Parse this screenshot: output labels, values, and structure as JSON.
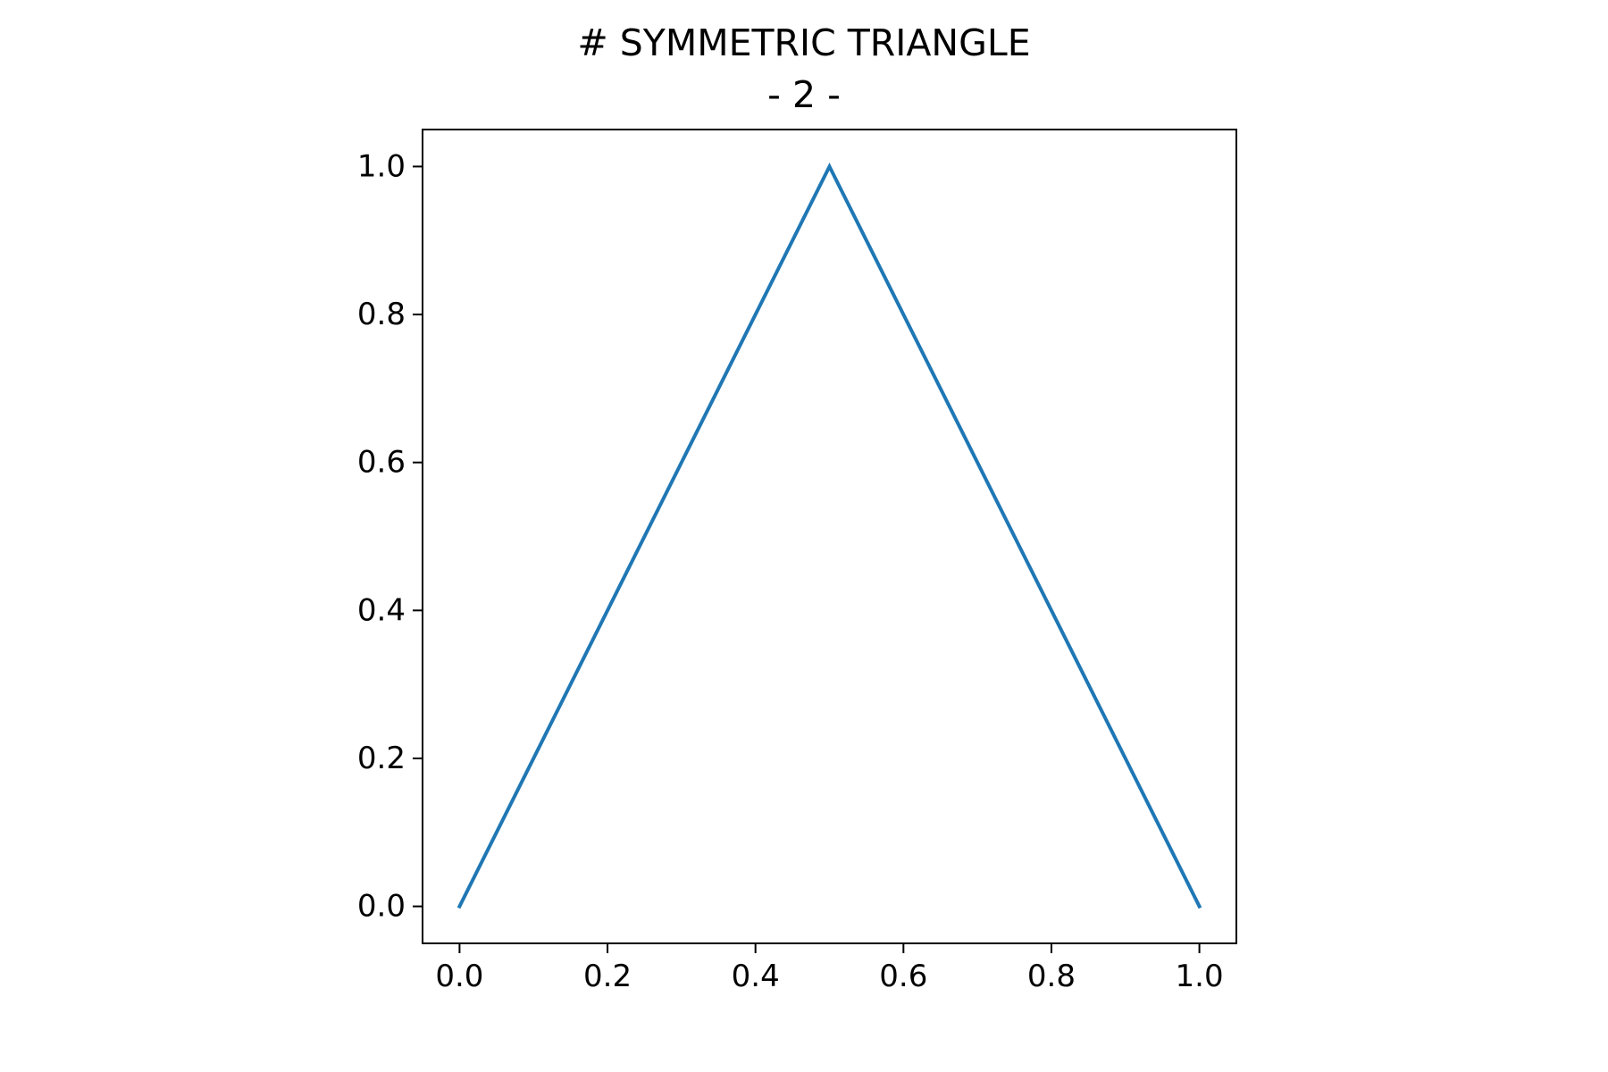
{
  "chart_data": {
    "type": "line",
    "title_lines": [
      "# SYMMETRIC TRIANGLE",
      "- 2 -"
    ],
    "xlabel": "",
    "ylabel": "",
    "xlim": [
      -0.05,
      1.05
    ],
    "ylim": [
      -0.05,
      1.05
    ],
    "xticks": [
      0.0,
      0.2,
      0.4,
      0.6,
      0.8,
      1.0
    ],
    "xtick_labels": [
      "0.0",
      "0.2",
      "0.4",
      "0.6",
      "0.8",
      "1.0"
    ],
    "yticks": [
      0.0,
      0.2,
      0.4,
      0.6,
      0.8,
      1.0
    ],
    "ytick_labels": [
      "0.0",
      "0.2",
      "0.4",
      "0.6",
      "0.8",
      "1.0"
    ],
    "grid": false,
    "legend": "none",
    "series": [
      {
        "x": [
          0.0,
          0.5,
          1.0
        ],
        "y": [
          0.0,
          1.0,
          0.0
        ],
        "color": "#1f77b4"
      }
    ]
  }
}
